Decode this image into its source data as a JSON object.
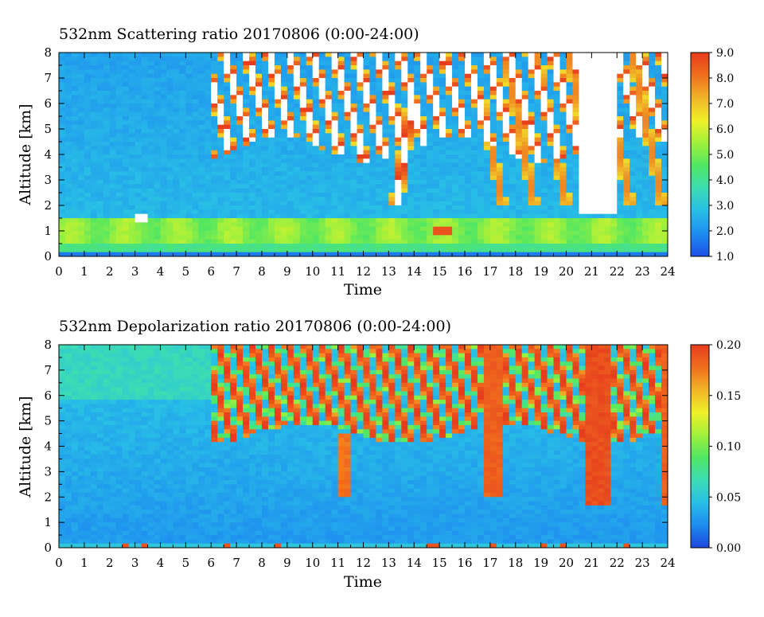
{
  "chart_data": [
    {
      "type": "heatmap",
      "title": "532nm Scattering ratio  20170806 (0:00-24:00)",
      "xlabel": "Time",
      "ylabel": "Altitude [km]",
      "xlim": [
        0,
        24
      ],
      "ylim": [
        0,
        8
      ],
      "x_ticks": [
        "0",
        "1",
        "2",
        "3",
        "4",
        "5",
        "6",
        "7",
        "8",
        "9",
        "10",
        "11",
        "12",
        "13",
        "14",
        "15",
        "16",
        "17",
        "18",
        "19",
        "20",
        "21",
        "22",
        "23",
        "24"
      ],
      "y_ticks": [
        "0",
        "1",
        "2",
        "3",
        "4",
        "5",
        "6",
        "7",
        "8"
      ],
      "colorbar": {
        "range": [
          1.0,
          9.0
        ],
        "ticks": [
          "1.0",
          "2.0",
          "3.0",
          "4.0",
          "5.0",
          "6.0",
          "7.0",
          "8.0",
          "9.0"
        ],
        "colors": [
          "#1e50e6",
          "#1e8cf0",
          "#28bee6",
          "#3cdcb4",
          "#50e664",
          "#a0f03c",
          "#f0f028",
          "#f0b428",
          "#f06e1e",
          "#e63c1e"
        ]
      },
      "features": [
        {
          "name": "boundary layer aerosol",
          "altitude_km": [
            0.5,
            1.5
          ],
          "time_h": [
            0,
            24
          ],
          "value": 4.5
        },
        {
          "name": "cloud/saturated (white)",
          "time_h": [
            6,
            24
          ],
          "altitude_km": [
            4,
            8
          ],
          "value": 9.0
        },
        {
          "name": "convective cloud",
          "time_h": [
            12.8,
            14.2
          ],
          "altitude_km": [
            2,
            6
          ],
          "value": 8.0
        }
      ]
    },
    {
      "type": "heatmap",
      "title": "532nm Depolarization ratio  20170806 (0:00-24:00)",
      "xlabel": "Time",
      "ylabel": "Altitude [km]",
      "xlim": [
        0,
        24
      ],
      "ylim": [
        0,
        8
      ],
      "x_ticks": [
        "0",
        "1",
        "2",
        "3",
        "4",
        "5",
        "6",
        "7",
        "8",
        "9",
        "10",
        "11",
        "12",
        "13",
        "14",
        "15",
        "16",
        "17",
        "18",
        "19",
        "20",
        "21",
        "22",
        "23",
        "24"
      ],
      "y_ticks": [
        "0",
        "1",
        "2",
        "3",
        "4",
        "5",
        "6",
        "7",
        "8"
      ],
      "colorbar": {
        "range": [
          0.0,
          0.2
        ],
        "ticks": [
          "0.00",
          "0.05",
          "0.10",
          "0.15",
          "0.20"
        ],
        "colors": [
          "#1e46dc",
          "#1e8cf0",
          "#28bee6",
          "#3cdcb4",
          "#50e664",
          "#a0f03c",
          "#f0f028",
          "#f0b428",
          "#f06e1e",
          "#e63c1e"
        ]
      },
      "features": [
        {
          "name": "low depolarization below 4 km",
          "altitude_km": [
            0,
            4
          ],
          "time_h": [
            0,
            24
          ],
          "value": 0.03
        },
        {
          "name": "ice cloud high depolarization",
          "time_h": [
            6,
            24
          ],
          "altitude_km": [
            4.5,
            8
          ],
          "value": 0.2
        },
        {
          "name": "fall streak",
          "time_h": [
            20.8,
            21.8
          ],
          "altitude_km": [
            1.7,
            8
          ],
          "value": 0.18
        }
      ]
    }
  ]
}
